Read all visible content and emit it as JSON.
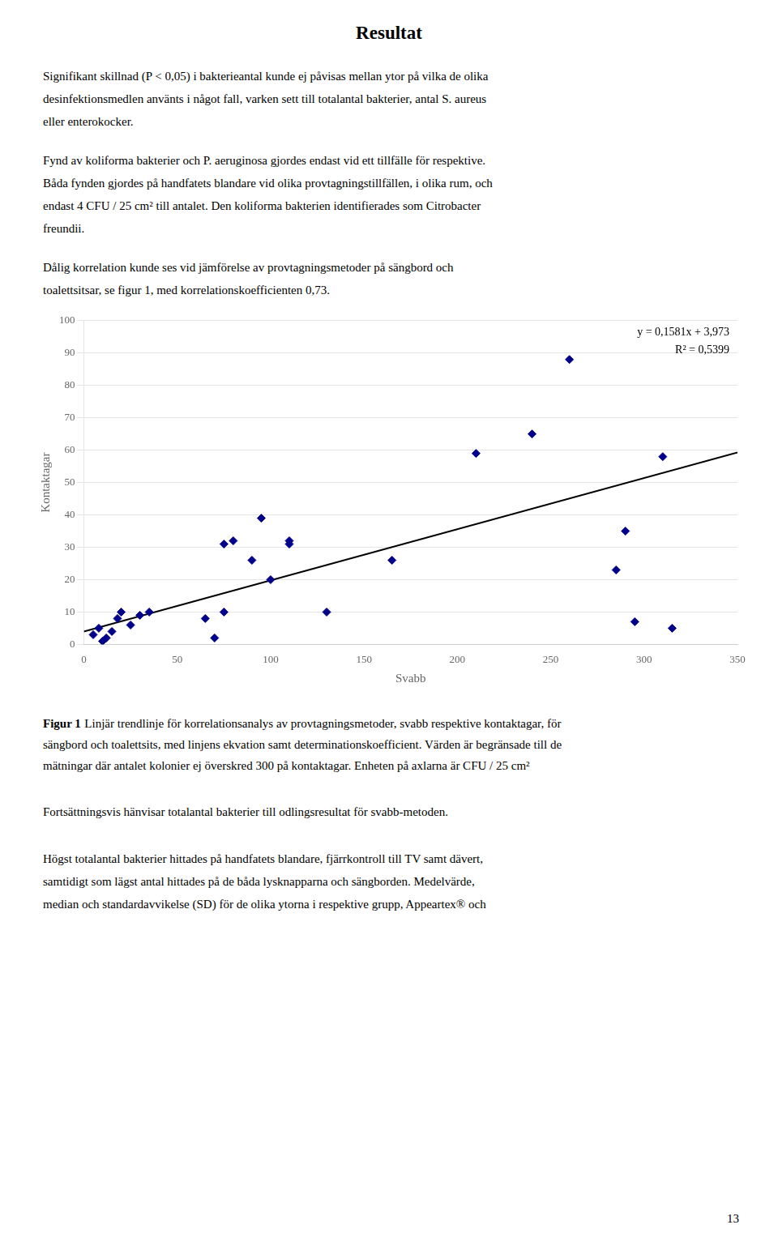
{
  "page": {
    "title": "Resultat",
    "paragraphs": [
      [
        "Signifikant skillnad (P < 0,05) i bakterieantal kunde ej påvisas mellan ytor på vilka de olika",
        "desinfektionsmedlen använts i något fall, varken sett till totalantal bakterier, antal S. aureus",
        "eller enterokocker."
      ],
      [
        "Fynd av koliforma bakterier och P. aeruginosa gjordes endast vid ett tillfälle för respektive.",
        "Båda fynden gjordes på handfatets blandare vid olika provtagningstillfällen, i olika rum, och",
        "endast 4 CFU / 25 cm² till antalet. Den koliforma bakterien identifierades som Citrobacter",
        "freundii."
      ],
      [
        "Dålig korrelation kunde ses vid jämförelse av provtagningsmetoder på sängbord och",
        "toalettsitsar, se figur 1, med korrelationskoefficienten 0,73."
      ]
    ],
    "caption": {
      "label": "Figur 1",
      "lines": [
        "Linjär trendlinje för korrelationsanalys av provtagningsmetoder, svabb respektive kontaktagar, för",
        "sängbord och toalettsits, med linjens ekvation samt determinationskoefficient. Värden är begränsade till de",
        "mätningar där antalet kolonier ej överskred 300 på kontaktagar. Enheten på axlarna är CFU / 25 cm²"
      ]
    },
    "paragraphs_after": [
      [
        "Fortsättningsvis hänvisar totalantal bakterier till odlingsresultat för svabb-metoden."
      ],
      [
        "Högst totalantal bakterier hittades på handfatets blandare, fjärrkontroll till TV samt dävert,",
        "samtidigt som lägst antal hittades på de båda lysknapparna och sängborden. Medelvärde,",
        "median och standardavvikelse (SD) för de olika ytorna i respektive grupp, Appeartex® och"
      ]
    ],
    "page_number": "13"
  },
  "chart_data": {
    "type": "scatter",
    "series": [
      {
        "type": "scatter",
        "color": "#00008B",
        "marker": "diamond",
        "x": [
          5,
          8,
          10,
          12,
          15,
          18,
          20,
          25,
          30,
          35,
          65,
          70,
          75,
          75,
          80,
          90,
          95,
          100,
          110,
          110,
          130,
          165,
          210,
          240,
          260,
          285,
          290,
          295,
          310,
          315
        ],
        "values": [
          3,
          5,
          1,
          2,
          4,
          8,
          10,
          6,
          9,
          10,
          8,
          2,
          10,
          31,
          32,
          26,
          39,
          20,
          32,
          31,
          10,
          26,
          59,
          65,
          88,
          23,
          35,
          7,
          58,
          5
        ]
      },
      {
        "type": "line",
        "color": "#000000",
        "line_style": "solid",
        "x": [
          0,
          350
        ],
        "values": [
          3.973,
          59.308
        ]
      }
    ],
    "annotations": [
      "y = 0,1581x + 3,973",
      "R² = 0,5399"
    ],
    "xlabel": "Svabb",
    "ylabel": "Kontaktagar",
    "xlim": [
      0,
      350
    ],
    "ylim": [
      0,
      100
    ],
    "xticks": [
      0,
      50,
      100,
      150,
      200,
      250,
      300,
      350
    ],
    "yticks": [
      0,
      10,
      20,
      30,
      40,
      50,
      60,
      70,
      80,
      90,
      100
    ],
    "grid": "y"
  }
}
